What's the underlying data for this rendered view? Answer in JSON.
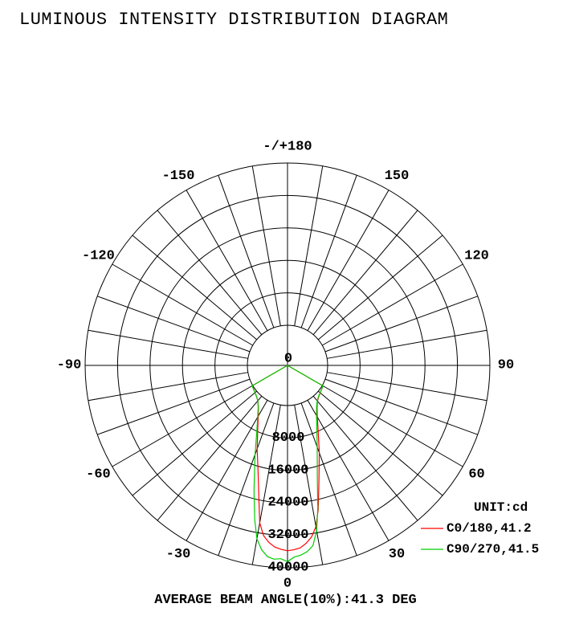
{
  "chart_data": {
    "type": "polar",
    "title": "LUMINOUS INTENSITY DISTRIBUTION DIAGRAM",
    "unit_label": "UNIT:cd",
    "footer": "AVERAGE BEAM ANGLE(10%):41.3 DEG",
    "angle_labels": [
      {
        "angle": 180,
        "text": "-/+180"
      },
      {
        "angle": 150,
        "text": "150"
      },
      {
        "angle": -150,
        "text": "-150"
      },
      {
        "angle": 120,
        "text": "120"
      },
      {
        "angle": -120,
        "text": "-120"
      },
      {
        "angle": 90,
        "text": "90"
      },
      {
        "angle": -90,
        "text": "-90"
      },
      {
        "angle": 60,
        "text": "60"
      },
      {
        "angle": -60,
        "text": "-60"
      },
      {
        "angle": 30,
        "text": "30"
      },
      {
        "angle": -30,
        "text": "-30"
      },
      {
        "angle": 0,
        "text": "0"
      }
    ],
    "radial_ticks": [
      0,
      8000,
      16000,
      24000,
      32000,
      40000
    ],
    "radial_tick_labels": [
      "0",
      "8000",
      "16000",
      "24000",
      "32000",
      "40000"
    ],
    "rmax": 40000,
    "series": [
      {
        "name": "C0/180,41.2",
        "color": "#ff0000",
        "angles": [
          -90,
          -60,
          -45,
          -40,
          -35,
          -30,
          -25,
          -20,
          -15,
          -12,
          -10,
          -8,
          -6,
          -4,
          -2,
          0,
          2,
          4,
          6,
          8,
          10,
          12,
          15,
          20,
          25,
          30,
          35,
          40,
          45,
          60,
          90
        ],
        "values": [
          0,
          150,
          900,
          1500,
          2600,
          4500,
          7500,
          12000,
          18000,
          24000,
          29500,
          32500,
          34000,
          35000,
          35500,
          35800,
          35600,
          35200,
          34200,
          32800,
          30500,
          26500,
          20000,
          13000,
          8000,
          4800,
          2800,
          1600,
          1000,
          200,
          0
        ]
      },
      {
        "name": "C90/270,41.5",
        "color": "#00cc00",
        "angles": [
          -90,
          -60,
          -45,
          -40,
          -35,
          -30,
          -25,
          -20,
          -15,
          -12,
          -10,
          -8,
          -6,
          -4,
          -2,
          0,
          2,
          4,
          6,
          8,
          10,
          12,
          15,
          20,
          25,
          30,
          35,
          40,
          45,
          60,
          90
        ],
        "values": [
          0,
          150,
          900,
          1500,
          2700,
          4800,
          8000,
          13500,
          22000,
          29000,
          33500,
          36000,
          37500,
          38000,
          37800,
          38500,
          37400,
          37000,
          36300,
          35000,
          31500,
          26000,
          18500,
          11500,
          7200,
          4400,
          2600,
          1500,
          900,
          200,
          0
        ]
      }
    ]
  }
}
